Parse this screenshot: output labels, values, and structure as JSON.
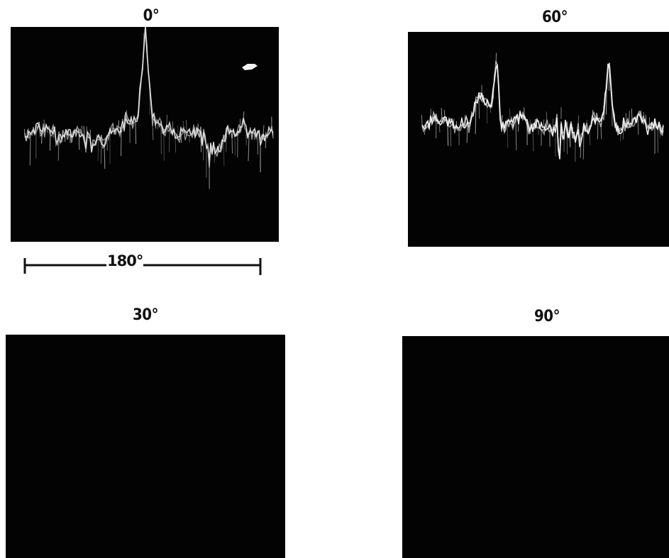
{
  "panels": [
    {
      "label": "0°",
      "has_trace": true
    },
    {
      "label": "60°",
      "has_trace": true
    },
    {
      "label": "30°",
      "has_trace": false
    },
    {
      "label": "90°",
      "has_trace": false
    }
  ],
  "scale": {
    "label": "180°"
  },
  "colors": {
    "screen": "#030303",
    "trace": "#e6e6e6",
    "background": "#ffffff",
    "ink": "#111111"
  }
}
